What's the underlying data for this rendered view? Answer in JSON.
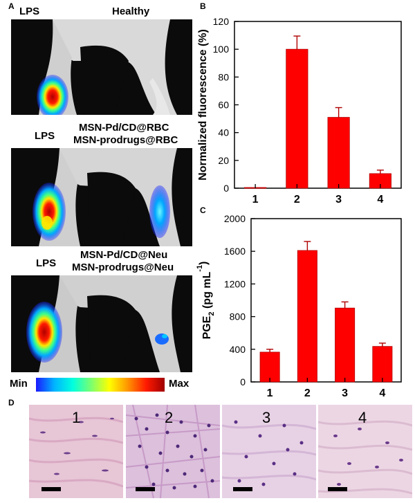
{
  "panels": {
    "a": "A",
    "b": "B",
    "c": "C",
    "d": "D"
  },
  "panel_a": {
    "rows": [
      {
        "left": "LPS",
        "right": [
          "Healthy"
        ]
      },
      {
        "left": "LPS",
        "right": [
          "MSN-Pd/CD@RBC",
          "MSN-prodrugs@RBC"
        ]
      },
      {
        "left": "LPS",
        "right": [
          "MSN-Pd/CD@Neu",
          "MSN-prodrugs@Neu"
        ]
      }
    ],
    "colorbar": {
      "min": "Min",
      "max": "Max",
      "colors": [
        "#1a1aff",
        "#00b4ff",
        "#00ffdf",
        "#7bff6f",
        "#ffff00",
        "#ff9400",
        "#ff1a00",
        "#a00000"
      ]
    }
  },
  "panel_d": {
    "labels": [
      "1",
      "2",
      "3",
      "4"
    ]
  },
  "chart_data": [
    {
      "type": "bar",
      "categories": [
        "1",
        "2",
        "3",
        "4"
      ],
      "values": [
        0.5,
        100,
        51,
        10.5
      ],
      "errors": [
        0,
        9.5,
        7,
        2.5
      ],
      "ylabel": "Normalized fluorescence (%)",
      "ylim": [
        0,
        120
      ],
      "yticks": [
        0,
        20,
        40,
        60,
        80,
        100,
        120
      ],
      "bar_color": "#ff0000"
    },
    {
      "type": "bar",
      "categories": [
        "1",
        "2",
        "3",
        "4"
      ],
      "values": [
        365,
        1610,
        905,
        435
      ],
      "errors": [
        35,
        110,
        75,
        40
      ],
      "ylabel_main": "PGE",
      "ylabel_sub": "2",
      "ylabel_unit": " (pg mL",
      "ylabel_sup": "-1",
      "ylabel_close": ")",
      "ylim": [
        0,
        2000
      ],
      "yticks": [
        0,
        400,
        800,
        1200,
        1600,
        2000
      ],
      "bar_color": "#ff0000"
    }
  ]
}
